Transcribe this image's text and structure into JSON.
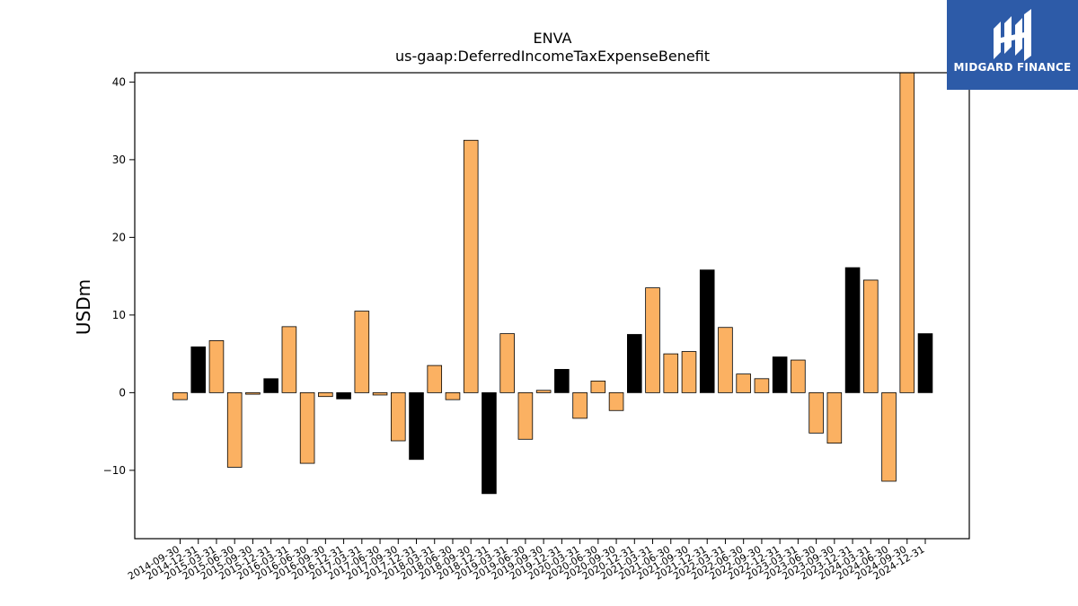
{
  "logo": {
    "text": "MIDGARD FINANCE",
    "icon": "mh-monogram-icon",
    "background": "#2d5ba8"
  },
  "colors": {
    "bar_orange": "#fbb162",
    "bar_black": "#000000"
  },
  "chart_data": {
    "type": "bar",
    "title": "ENVA",
    "subtitle": "us-gaap:DeferredIncomeTaxExpenseBenefit",
    "xlabel": "",
    "ylabel": "USDm",
    "ylim": [
      -18.8,
      41.2
    ],
    "yticks": [
      -10,
      0,
      10,
      20,
      30,
      40
    ],
    "ytick_labels": [
      "−10",
      "0",
      "10",
      "20",
      "30",
      "40"
    ],
    "grid": false,
    "categories": [
      "2014-09-30",
      "2014-12-31",
      "2015-03-31",
      "2015-06-30",
      "2015-09-30",
      "2015-12-31",
      "2016-03-31",
      "2016-06-30",
      "2016-09-30",
      "2016-12-31",
      "2017-03-31",
      "2017-06-30",
      "2017-09-30",
      "2017-12-31",
      "2018-03-31",
      "2018-06-30",
      "2018-09-30",
      "2018-12-31",
      "2019-03-31",
      "2019-06-30",
      "2019-09-30",
      "2019-12-31",
      "2020-03-31",
      "2020-06-30",
      "2020-09-30",
      "2020-12-31",
      "2021-03-31",
      "2021-06-30",
      "2021-09-30",
      "2021-12-31",
      "2022-03-31",
      "2022-06-30",
      "2022-09-30",
      "2022-12-31",
      "2023-03-31",
      "2023-06-30",
      "2023-09-30",
      "2023-12-31",
      "2024-03-31",
      "2024-06-30",
      "2024-09-30",
      "2024-12-31"
    ],
    "values": [
      -0.9,
      5.9,
      6.7,
      -9.6,
      -0.2,
      1.8,
      8.5,
      -9.1,
      -0.5,
      -0.8,
      10.5,
      -0.3,
      -6.2,
      -8.6,
      3.5,
      -0.9,
      32.5,
      -13.0,
      7.6,
      -6.0,
      0.3,
      3.0,
      -3.3,
      1.5,
      -2.3,
      7.5,
      13.5,
      5.0,
      5.3,
      15.8,
      8.4,
      2.4,
      1.8,
      4.6,
      4.2,
      -5.2,
      -6.5,
      16.1,
      14.5,
      -11.4,
      41.2,
      7.6
    ],
    "quarter_end": [
      false,
      true,
      false,
      false,
      false,
      true,
      false,
      false,
      false,
      true,
      false,
      false,
      false,
      true,
      false,
      false,
      false,
      true,
      false,
      false,
      false,
      true,
      false,
      false,
      false,
      true,
      false,
      false,
      false,
      true,
      false,
      false,
      false,
      true,
      false,
      false,
      false,
      true,
      false,
      false,
      false,
      true
    ]
  }
}
